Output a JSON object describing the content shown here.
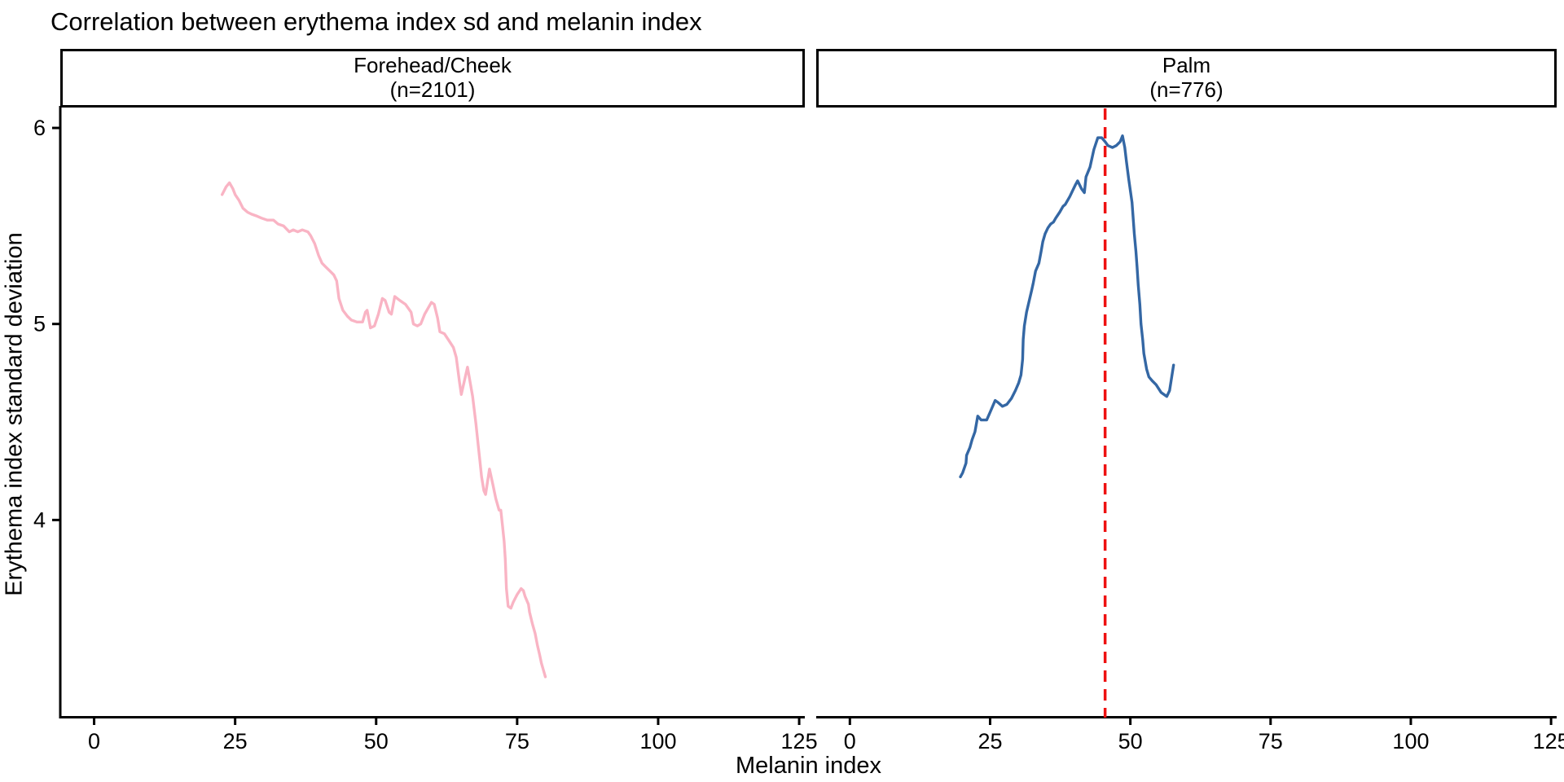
{
  "title": "Correlation between erythema index sd and melanin index",
  "chart_data": {
    "type": "line",
    "title": "Correlation between erythema index sd and melanin index",
    "xlabel": "Melanin index",
    "ylabel": "Erythema index standard deviation",
    "xlim": [
      -6,
      126
    ],
    "ylim": [
      3.0,
      6.1
    ],
    "x_ticks": [
      0,
      25,
      50,
      75,
      100,
      125
    ],
    "y_ticks": [
      4,
      5,
      6
    ],
    "grid": false,
    "legend": "none",
    "facets": [
      {
        "label": "Forehead/Cheek",
        "n_label": "(n=2101)",
        "color": "#f9b4c4",
        "points": [
          [
            22.7,
            5.66
          ],
          [
            23.4,
            5.7
          ],
          [
            24.0,
            5.72
          ],
          [
            24.6,
            5.69
          ],
          [
            25.0,
            5.66
          ],
          [
            25.7,
            5.63
          ],
          [
            26.4,
            5.59
          ],
          [
            27.2,
            5.57
          ],
          [
            27.9,
            5.56
          ],
          [
            28.9,
            5.55
          ],
          [
            29.7,
            5.54
          ],
          [
            30.7,
            5.53
          ],
          [
            31.8,
            5.53
          ],
          [
            32.6,
            5.51
          ],
          [
            33.6,
            5.5
          ],
          [
            34.6,
            5.47
          ],
          [
            35.3,
            5.48
          ],
          [
            36.1,
            5.47
          ],
          [
            36.9,
            5.48
          ],
          [
            37.9,
            5.47
          ],
          [
            38.4,
            5.45
          ],
          [
            39.1,
            5.41
          ],
          [
            39.8,
            5.35
          ],
          [
            40.4,
            5.31
          ],
          [
            41.1,
            5.29
          ],
          [
            41.8,
            5.27
          ],
          [
            42.5,
            5.25
          ],
          [
            43.0,
            5.22
          ],
          [
            43.4,
            5.13
          ],
          [
            44.1,
            5.07
          ],
          [
            44.9,
            5.04
          ],
          [
            45.6,
            5.02
          ],
          [
            46.6,
            5.01
          ],
          [
            47.6,
            5.01
          ],
          [
            48.1,
            5.06
          ],
          [
            48.4,
            5.07
          ],
          [
            49.0,
            4.98
          ],
          [
            49.7,
            4.99
          ],
          [
            50.4,
            5.05
          ],
          [
            51.1,
            5.13
          ],
          [
            51.6,
            5.12
          ],
          [
            52.3,
            5.06
          ],
          [
            52.7,
            5.05
          ],
          [
            53.3,
            5.14
          ],
          [
            54.2,
            5.12
          ],
          [
            55.2,
            5.1
          ],
          [
            56.2,
            5.06
          ],
          [
            56.6,
            5.0
          ],
          [
            57.3,
            4.99
          ],
          [
            57.9,
            5.0
          ],
          [
            58.6,
            5.05
          ],
          [
            59.8,
            5.11
          ],
          [
            60.3,
            5.1
          ],
          [
            60.9,
            5.03
          ],
          [
            61.3,
            4.96
          ],
          [
            62.1,
            4.95
          ],
          [
            62.8,
            4.92
          ],
          [
            63.7,
            4.88
          ],
          [
            64.2,
            4.83
          ],
          [
            64.8,
            4.7
          ],
          [
            65.1,
            4.64
          ],
          [
            66.2,
            4.78
          ],
          [
            67.1,
            4.63
          ],
          [
            67.7,
            4.49
          ],
          [
            68.1,
            4.38
          ],
          [
            68.4,
            4.3
          ],
          [
            68.7,
            4.22
          ],
          [
            69.1,
            4.15
          ],
          [
            69.4,
            4.13
          ],
          [
            70.1,
            4.26
          ],
          [
            70.7,
            4.18
          ],
          [
            71.2,
            4.11
          ],
          [
            71.8,
            4.05
          ],
          [
            72.1,
            4.05
          ],
          [
            72.4,
            3.97
          ],
          [
            72.7,
            3.89
          ],
          [
            72.9,
            3.8
          ],
          [
            73.1,
            3.65
          ],
          [
            73.4,
            3.56
          ],
          [
            73.9,
            3.55
          ],
          [
            74.3,
            3.58
          ],
          [
            75.0,
            3.62
          ],
          [
            75.7,
            3.65
          ],
          [
            76.1,
            3.64
          ],
          [
            76.4,
            3.61
          ],
          [
            77.0,
            3.57
          ],
          [
            77.2,
            3.53
          ],
          [
            77.7,
            3.47
          ],
          [
            78.2,
            3.42
          ],
          [
            78.6,
            3.36
          ],
          [
            79.0,
            3.31
          ],
          [
            79.3,
            3.27
          ],
          [
            79.6,
            3.24
          ],
          [
            80.0,
            3.2
          ]
        ]
      },
      {
        "label": "Palm",
        "n_label": "(n=776)",
        "color": "#3467a4",
        "vline": {
          "x": 45.5,
          "color": "#ee1111",
          "style": "dashed"
        },
        "points": [
          [
            19.7,
            4.22
          ],
          [
            20.1,
            4.24
          ],
          [
            20.7,
            4.29
          ],
          [
            20.8,
            4.33
          ],
          [
            21.4,
            4.37
          ],
          [
            21.8,
            4.41
          ],
          [
            22.3,
            4.45
          ],
          [
            22.8,
            4.53
          ],
          [
            23.4,
            4.51
          ],
          [
            24.0,
            4.51
          ],
          [
            24.4,
            4.51
          ],
          [
            25.0,
            4.55
          ],
          [
            25.9,
            4.61
          ],
          [
            26.4,
            4.6
          ],
          [
            27.2,
            4.58
          ],
          [
            28.0,
            4.59
          ],
          [
            28.8,
            4.62
          ],
          [
            29.5,
            4.66
          ],
          [
            30.1,
            4.7
          ],
          [
            30.5,
            4.74
          ],
          [
            30.8,
            4.82
          ],
          [
            30.9,
            4.92
          ],
          [
            31.1,
            4.99
          ],
          [
            31.5,
            5.06
          ],
          [
            31.9,
            5.11
          ],
          [
            32.4,
            5.17
          ],
          [
            32.7,
            5.21
          ],
          [
            33.1,
            5.27
          ],
          [
            33.7,
            5.31
          ],
          [
            34.1,
            5.37
          ],
          [
            34.4,
            5.42
          ],
          [
            34.8,
            5.46
          ],
          [
            35.3,
            5.49
          ],
          [
            35.8,
            5.51
          ],
          [
            36.3,
            5.52
          ],
          [
            36.7,
            5.54
          ],
          [
            37.4,
            5.57
          ],
          [
            38.0,
            5.6
          ],
          [
            38.4,
            5.61
          ],
          [
            39.2,
            5.65
          ],
          [
            40.2,
            5.71
          ],
          [
            40.6,
            5.73
          ],
          [
            41.3,
            5.69
          ],
          [
            41.8,
            5.67
          ],
          [
            42.1,
            5.75
          ],
          [
            42.8,
            5.8
          ],
          [
            43.5,
            5.89
          ],
          [
            44.2,
            5.95
          ],
          [
            44.9,
            5.95
          ],
          [
            45.5,
            5.93
          ],
          [
            46.0,
            5.91
          ],
          [
            46.8,
            5.9
          ],
          [
            47.5,
            5.91
          ],
          [
            48.2,
            5.93
          ],
          [
            48.6,
            5.96
          ],
          [
            49.0,
            5.9
          ],
          [
            49.3,
            5.83
          ],
          [
            49.7,
            5.74
          ],
          [
            50.3,
            5.62
          ],
          [
            50.7,
            5.46
          ],
          [
            51.0,
            5.37
          ],
          [
            51.2,
            5.29
          ],
          [
            51.4,
            5.2
          ],
          [
            51.7,
            5.1
          ],
          [
            51.9,
            5.0
          ],
          [
            52.2,
            4.92
          ],
          [
            52.4,
            4.85
          ],
          [
            52.9,
            4.77
          ],
          [
            53.3,
            4.73
          ],
          [
            53.9,
            4.71
          ],
          [
            54.6,
            4.69
          ],
          [
            55.5,
            4.65
          ],
          [
            56.5,
            4.63
          ],
          [
            57.0,
            4.66
          ],
          [
            57.7,
            4.79
          ]
        ]
      }
    ]
  }
}
